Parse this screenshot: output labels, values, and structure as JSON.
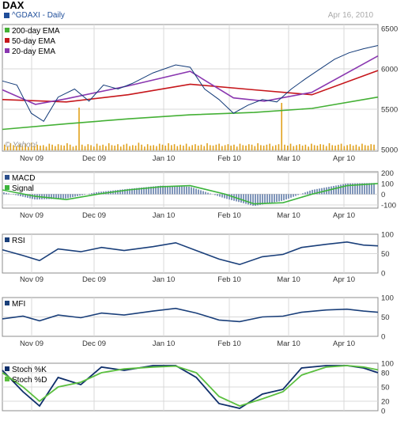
{
  "header": {
    "title": "DAX",
    "subtitle": "^GDAXI - Daily",
    "date": "Apr 16, 2010"
  },
  "colors": {
    "price": "#123a78",
    "ema200": "#44b035",
    "ema50": "#c6161b",
    "ema20": "#8a37b0",
    "volume": "#e1a11c",
    "macd_hist": "#2c4f8c",
    "signal": "#3cb43c",
    "rsi": "#1a3f7a",
    "mfi": "#1a3f7a",
    "stoch_k": "#0f2f6b",
    "stoch_d": "#5bbf3f",
    "grid": "#d8d8d8",
    "frame": "#8c8c8c"
  },
  "x_labels": [
    "Nov 09",
    "Dec 09",
    "Jan 10",
    "Feb 10",
    "Mar 10",
    "Apr 10"
  ],
  "watermark": "© Yahoo!",
  "chart_data": [
    {
      "type": "line",
      "panel": "price",
      "legend": [
        "200-day EMA",
        "50-day EMA",
        "20-day EMA"
      ],
      "y_ticks": [
        5000,
        5500,
        6000,
        6500
      ],
      "ylim": [
        4980,
        6550
      ],
      "x_range": [
        "2009-10-16",
        "2010-04-16"
      ],
      "series": [
        {
          "name": "200-day EMA",
          "points": [
            [
              "2009-10-16",
              5250
            ],
            [
              "2009-11-16",
              5320
            ],
            [
              "2009-12-16",
              5380
            ],
            [
              "2010-01-15",
              5430
            ],
            [
              "2010-02-15",
              5460
            ],
            [
              "2010-03-15",
              5510
            ],
            [
              "2010-04-16",
              5650
            ]
          ]
        },
        {
          "name": "50-day EMA",
          "points": [
            [
              "2009-10-16",
              5620
            ],
            [
              "2009-11-16",
              5590
            ],
            [
              "2009-12-16",
              5680
            ],
            [
              "2010-01-15",
              5810
            ],
            [
              "2010-02-15",
              5740
            ],
            [
              "2010-03-15",
              5680
            ],
            [
              "2010-04-16",
              5980
            ]
          ]
        },
        {
          "name": "20-day EMA",
          "points": [
            [
              "2009-10-16",
              5740
            ],
            [
              "2009-11-01",
              5560
            ],
            [
              "2009-11-16",
              5630
            ],
            [
              "2009-12-16",
              5790
            ],
            [
              "2010-01-15",
              5970
            ],
            [
              "2010-02-05",
              5640
            ],
            [
              "2010-02-20",
              5600
            ],
            [
              "2010-03-15",
              5710
            ],
            [
              "2010-04-16",
              6160
            ]
          ]
        },
        {
          "name": "price",
          "points": [
            [
              "2009-10-16",
              5850
            ],
            [
              "2009-10-23",
              5800
            ],
            [
              "2009-10-30",
              5450
            ],
            [
              "2009-11-05",
              5350
            ],
            [
              "2009-11-12",
              5650
            ],
            [
              "2009-11-20",
              5750
            ],
            [
              "2009-11-27",
              5600
            ],
            [
              "2009-12-04",
              5800
            ],
            [
              "2009-12-11",
              5750
            ],
            [
              "2009-12-18",
              5820
            ],
            [
              "2009-12-28",
              5950
            ],
            [
              "2010-01-08",
              6050
            ],
            [
              "2010-01-15",
              6020
            ],
            [
              "2010-01-22",
              5750
            ],
            [
              "2010-01-29",
              5620
            ],
            [
              "2010-02-05",
              5450
            ],
            [
              "2010-02-12",
              5550
            ],
            [
              "2010-02-19",
              5620
            ],
            [
              "2010-02-26",
              5590
            ],
            [
              "2010-03-05",
              5750
            ],
            [
              "2010-03-12",
              5880
            ],
            [
              "2010-03-19",
              6000
            ],
            [
              "2010-03-26",
              6120
            ],
            [
              "2010-04-02",
              6200
            ],
            [
              "2010-04-09",
              6250
            ],
            [
              "2010-04-16",
              6290
            ]
          ]
        }
      ],
      "volume_values": [
        0.12,
        0.08,
        0.15,
        0.11,
        0.09,
        0.13,
        0.1,
        0.14,
        0.07,
        0.16,
        0.09,
        0.12,
        0.1,
        0.11,
        0.08,
        0.14,
        0.12,
        0.09,
        0.13,
        0.11,
        0.1,
        0.15,
        0.12,
        0.08,
        0.1,
        0.9,
        0.12,
        0.09,
        0.13,
        0.11,
        0.08,
        0.14,
        0.1,
        0.12,
        0.09,
        0.15,
        0.11,
        0.1,
        0.13,
        0.08,
        0.12,
        0.14,
        0.09,
        0.11,
        0.1,
        0.16,
        0.12,
        0.08,
        0.13,
        0.1,
        0.11,
        0.09,
        0.14,
        0.12,
        0.1,
        0.15,
        0.11,
        0.13,
        0.09,
        0.12,
        0.1,
        0.14,
        0.08,
        0.11,
        0.13,
        0.1,
        0.12,
        0.09,
        0.15,
        0.11,
        0.1,
        0.12,
        0.14,
        0.09,
        0.11,
        0.13,
        0.1,
        0.12,
        0.08,
        0.14,
        0.11,
        0.1,
        0.13,
        0.12,
        0.09,
        0.15,
        0.11,
        0.1,
        0.12,
        0.14,
        0.09,
        0.11,
        0.13,
        1.0,
        0.12,
        0.1,
        0.14,
        0.09,
        0.11,
        0.13,
        0.1,
        0.12,
        0.08,
        0.14,
        0.11,
        0.1,
        0.13,
        0.12,
        0.09,
        0.15,
        0.11,
        0.1,
        0.12,
        0.14,
        0.09,
        0.11,
        0.13,
        0.1,
        0.12,
        0.08,
        0.14,
        0.11,
        0.1,
        0.13,
        0.12
      ]
    },
    {
      "type": "bar",
      "panel": "macd",
      "legend": [
        "MACD",
        "Signal"
      ],
      "y_ticks": [
        200,
        100,
        0,
        -100
      ],
      "ylim": [
        -130,
        210
      ],
      "x_range": [
        "2009-10-16",
        "2010-04-16"
      ],
      "series": [
        {
          "name": "MACD",
          "points": [
            [
              "2009-10-16",
              20
            ],
            [
              "2009-11-01",
              -50
            ],
            [
              "2009-11-16",
              -40
            ],
            [
              "2009-12-01",
              20
            ],
            [
              "2009-12-16",
              50
            ],
            [
              "2010-01-01",
              80
            ],
            [
              "2010-01-15",
              70
            ],
            [
              "2010-02-01",
              -40
            ],
            [
              "2010-02-15",
              -110
            ],
            [
              "2010-03-01",
              -60
            ],
            [
              "2010-03-15",
              40
            ],
            [
              "2010-04-01",
              100
            ],
            [
              "2010-04-16",
              105
            ]
          ]
        },
        {
          "name": "Signal",
          "points": [
            [
              "2009-10-16",
              40
            ],
            [
              "2009-11-01",
              -20
            ],
            [
              "2009-11-16",
              -50
            ],
            [
              "2009-12-01",
              0
            ],
            [
              "2009-12-16",
              40
            ],
            [
              "2010-01-01",
              70
            ],
            [
              "2010-01-15",
              80
            ],
            [
              "2010-02-01",
              0
            ],
            [
              "2010-02-15",
              -90
            ],
            [
              "2010-03-01",
              -80
            ],
            [
              "2010-03-15",
              0
            ],
            [
              "2010-04-01",
              80
            ],
            [
              "2010-04-16",
              100
            ]
          ]
        }
      ]
    },
    {
      "type": "line",
      "panel": "rsi",
      "legend": [
        "RSI"
      ],
      "y_ticks": [
        100,
        50,
        0
      ],
      "ylim": [
        0,
        100
      ],
      "x_range": [
        "2009-10-16",
        "2010-04-16"
      ],
      "series": [
        {
          "name": "RSI",
          "points": [
            [
              "2009-10-16",
              60
            ],
            [
              "2009-10-26",
              45
            ],
            [
              "2009-11-03",
              32
            ],
            [
              "2009-11-12",
              62
            ],
            [
              "2009-11-23",
              55
            ],
            [
              "2009-12-03",
              66
            ],
            [
              "2009-12-14",
              58
            ],
            [
              "2009-12-28",
              68
            ],
            [
              "2010-01-08",
              78
            ],
            [
              "2010-01-18",
              58
            ],
            [
              "2010-01-29",
              36
            ],
            [
              "2010-02-08",
              22
            ],
            [
              "2010-02-19",
              42
            ],
            [
              "2010-03-01",
              48
            ],
            [
              "2010-03-10",
              66
            ],
            [
              "2010-03-22",
              74
            ],
            [
              "2010-04-01",
              80
            ],
            [
              "2010-04-09",
              72
            ],
            [
              "2010-04-16",
              70
            ]
          ]
        }
      ]
    },
    {
      "type": "line",
      "panel": "mfi",
      "legend": [
        "MFI"
      ],
      "y_ticks": [
        100,
        50,
        0
      ],
      "ylim": [
        0,
        100
      ],
      "x_range": [
        "2009-10-16",
        "2010-04-16"
      ],
      "series": [
        {
          "name": "MFI",
          "points": [
            [
              "2009-10-16",
              45
            ],
            [
              "2009-10-26",
              52
            ],
            [
              "2009-11-03",
              40
            ],
            [
              "2009-11-12",
              55
            ],
            [
              "2009-11-23",
              48
            ],
            [
              "2009-12-03",
              60
            ],
            [
              "2009-12-14",
              55
            ],
            [
              "2009-12-28",
              65
            ],
            [
              "2010-01-08",
              72
            ],
            [
              "2010-01-18",
              60
            ],
            [
              "2010-01-29",
              42
            ],
            [
              "2010-02-08",
              38
            ],
            [
              "2010-02-19",
              50
            ],
            [
              "2010-03-01",
              52
            ],
            [
              "2010-03-10",
              62
            ],
            [
              "2010-03-22",
              68
            ],
            [
              "2010-04-01",
              70
            ],
            [
              "2010-04-09",
              65
            ],
            [
              "2010-04-16",
              62
            ]
          ]
        }
      ]
    },
    {
      "type": "line",
      "panel": "stoch",
      "legend": [
        "Stoch %K",
        "Stoch %D"
      ],
      "y_ticks": [
        100,
        80,
        50,
        20,
        0
      ],
      "ylim": [
        0,
        100
      ],
      "x_range": [
        "2009-10-16",
        "2010-04-16"
      ],
      "series": [
        {
          "name": "Stoch %K",
          "points": [
            [
              "2009-10-16",
              85
            ],
            [
              "2009-10-26",
              40
            ],
            [
              "2009-11-03",
              10
            ],
            [
              "2009-11-12",
              70
            ],
            [
              "2009-11-23",
              55
            ],
            [
              "2009-12-03",
              92
            ],
            [
              "2009-12-14",
              85
            ],
            [
              "2009-12-28",
              95
            ],
            [
              "2010-01-08",
              95
            ],
            [
              "2010-01-18",
              70
            ],
            [
              "2010-01-29",
              15
            ],
            [
              "2010-02-08",
              5
            ],
            [
              "2010-02-19",
              35
            ],
            [
              "2010-03-01",
              45
            ],
            [
              "2010-03-10",
              90
            ],
            [
              "2010-03-22",
              95
            ],
            [
              "2010-04-01",
              95
            ],
            [
              "2010-04-09",
              90
            ],
            [
              "2010-04-16",
              80
            ]
          ]
        },
        {
          "name": "Stoch %D",
          "points": [
            [
              "2009-10-16",
              80
            ],
            [
              "2009-10-26",
              50
            ],
            [
              "2009-11-03",
              20
            ],
            [
              "2009-11-12",
              50
            ],
            [
              "2009-11-23",
              60
            ],
            [
              "2009-12-03",
              80
            ],
            [
              "2009-12-14",
              88
            ],
            [
              "2009-12-28",
              92
            ],
            [
              "2010-01-08",
              94
            ],
            [
              "2010-01-18",
              80
            ],
            [
              "2010-01-29",
              30
            ],
            [
              "2010-02-08",
              10
            ],
            [
              "2010-02-19",
              25
            ],
            [
              "2010-03-01",
              40
            ],
            [
              "2010-03-10",
              75
            ],
            [
              "2010-03-22",
              92
            ],
            [
              "2010-04-01",
              95
            ],
            [
              "2010-04-09",
              92
            ],
            [
              "2010-04-16",
              86
            ]
          ]
        }
      ]
    }
  ]
}
